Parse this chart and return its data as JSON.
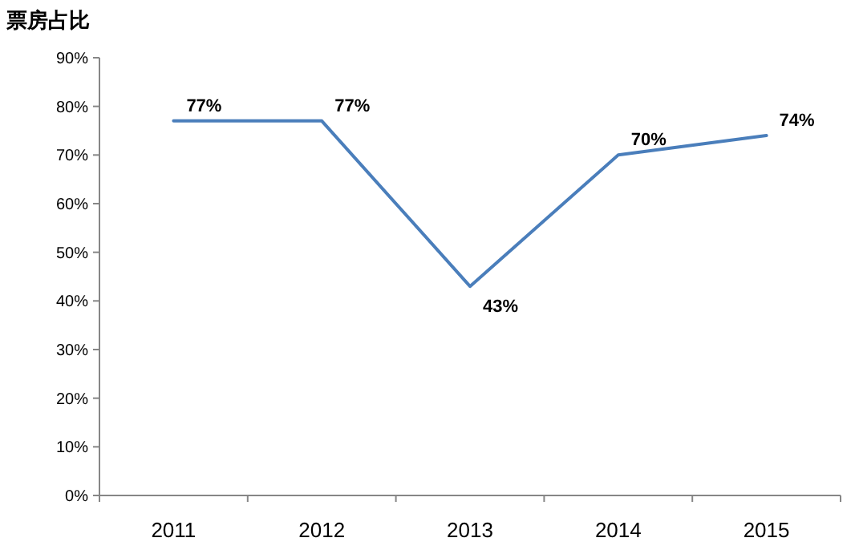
{
  "chart_data": {
    "type": "line",
    "title": "票房占比",
    "categories": [
      "2011",
      "2012",
      "2013",
      "2014",
      "2015"
    ],
    "values": [
      77,
      77,
      43,
      70,
      74
    ],
    "value_labels": [
      "77%",
      "77%",
      "43%",
      "70%",
      "74%"
    ],
    "color": "#4a7ebb",
    "ylim": [
      0,
      90
    ],
    "yticks": [
      {
        "value": 0,
        "label": "0%"
      },
      {
        "value": 10,
        "label": "10%"
      },
      {
        "value": 20,
        "label": "20%"
      },
      {
        "value": 30,
        "label": "30%"
      },
      {
        "value": 40,
        "label": "40%"
      },
      {
        "value": 50,
        "label": "50%"
      },
      {
        "value": 60,
        "label": "60%"
      },
      {
        "value": 70,
        "label": "70%"
      },
      {
        "value": 80,
        "label": "80%"
      },
      {
        "value": 90,
        "label": "90%"
      }
    ],
    "grid": false,
    "marker": "none",
    "line_style": "solid"
  }
}
